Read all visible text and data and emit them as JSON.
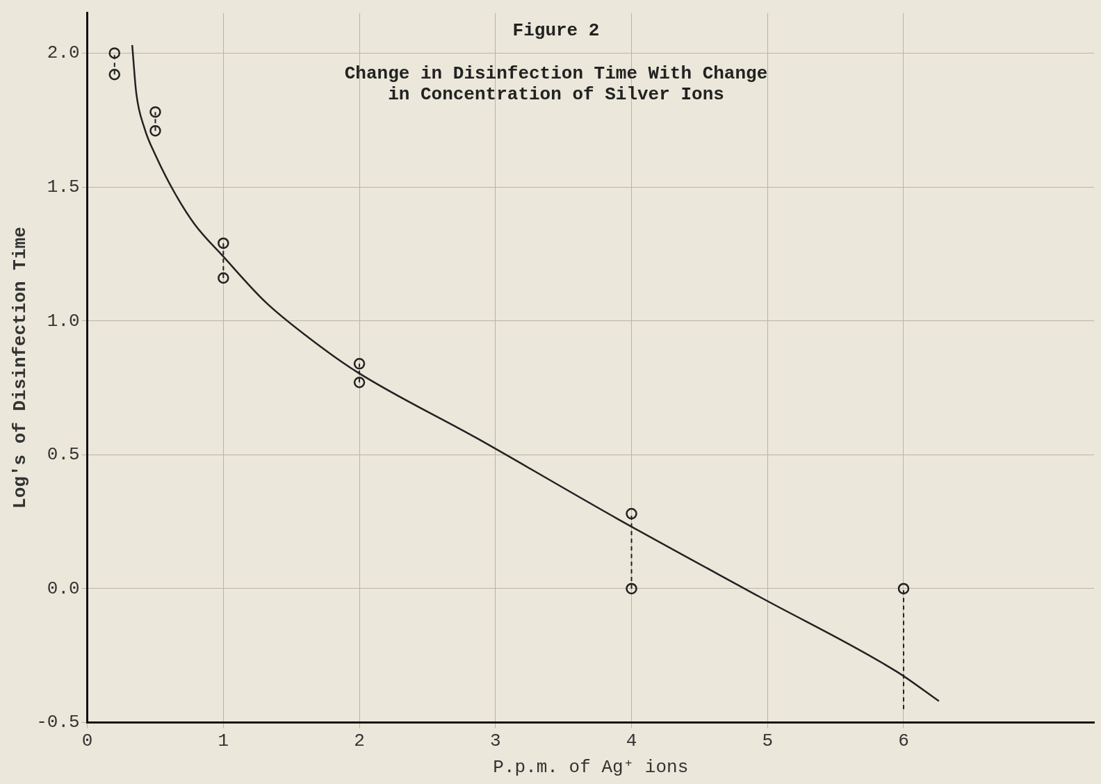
{
  "chart_data": {
    "type": "scatter",
    "title": "Figure 2",
    "subtitle": "Change in Disinfection Time With Change\nin Concentration of Silver Ions",
    "xlabel": "P.p.m. of Ag⁺ ions",
    "ylabel": "Log's of Disinfection Time",
    "xlim": [
      0,
      7.4
    ],
    "xticks": [
      0,
      1,
      2,
      3,
      4,
      5,
      6
    ],
    "ylim": [
      -0.5,
      2.15
    ],
    "yticks": [
      {
        "value": -0.5,
        "label": "-0.5"
      },
      {
        "value": 0,
        "label": "0.0"
      },
      {
        "value": 0.5,
        "label": "0.5"
      },
      {
        "value": 1,
        "label": "1.0"
      },
      {
        "value": 1.5,
        "label": "1.5"
      },
      {
        "value": 2,
        "label": "2.0"
      }
    ],
    "grid": true,
    "legend": false,
    "marker": "circle",
    "series": [
      {
        "color": "#222222",
        "x": [
          0.2,
          0.2,
          0.5,
          0.5,
          1,
          1,
          2,
          2,
          4,
          4,
          6
        ],
        "values": [
          2.0,
          1.92,
          1.78,
          1.71,
          1.29,
          1.16,
          0.84,
          0.77,
          0.28,
          0,
          0
        ],
        "errors": [
          [
            1.92,
            2.0
          ],
          null,
          [
            1.71,
            1.78
          ],
          null,
          [
            1.16,
            1.29
          ],
          null,
          [
            0.77,
            0.84
          ],
          null,
          [
            0,
            0.28
          ],
          null,
          [
            -0.45,
            0
          ]
        ]
      },
      {
        "type": "line",
        "color": "#222222",
        "marker": "none",
        "line_style": "solid",
        "x": [
          0.33,
          0.36,
          0.42,
          0.5,
          0.64,
          0.79,
          1.0,
          1.31,
          1.62,
          1.98,
          2.87,
          3.9,
          4.94,
          5.95,
          6.26
        ],
        "values": [
          2.03,
          1.85,
          1.72,
          1.62,
          1.48,
          1.36,
          1.24,
          1.07,
          0.94,
          0.81,
          0.56,
          0.26,
          -0.03,
          -0.31,
          -0.42
        ]
      }
    ]
  }
}
